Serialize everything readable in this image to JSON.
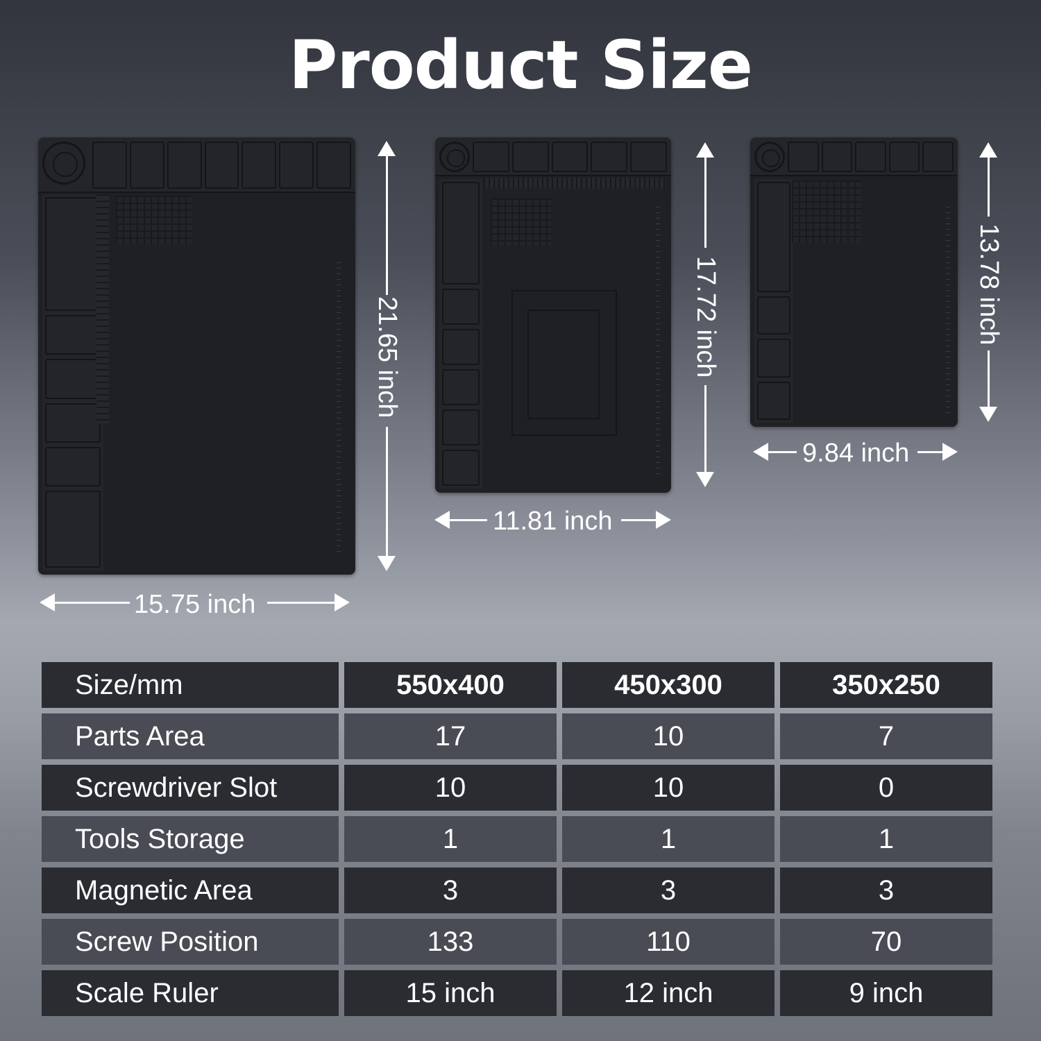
{
  "title": "Product Size",
  "mats": [
    {
      "size": "large",
      "width_label": "15.75 inch",
      "height_label": "21.65 inch"
    },
    {
      "size": "medium",
      "width_label": "11.81 inch",
      "height_label": "17.72 inch"
    },
    {
      "size": "small",
      "width_label": "9.84 inch",
      "height_label": "13.78 inch"
    }
  ],
  "table": {
    "header": {
      "label": "Size/mm",
      "values": [
        "550x400",
        "450x300",
        "350x250"
      ]
    },
    "rows": [
      {
        "label": "Parts Area",
        "values": [
          "17",
          "10",
          "7"
        ]
      },
      {
        "label": "Screwdriver Slot",
        "values": [
          "10",
          "10",
          "0"
        ]
      },
      {
        "label": "Tools Storage",
        "values": [
          "1",
          "1",
          "1"
        ]
      },
      {
        "label": "Magnetic Area",
        "values": [
          "3",
          "3",
          "3"
        ]
      },
      {
        "label": "Screw Position",
        "values": [
          "133",
          "110",
          "70"
        ]
      },
      {
        "label": "Scale Ruler",
        "values": [
          "15 inch",
          "12 inch",
          "9 inch"
        ]
      }
    ]
  },
  "colors": {
    "dark_row": "#2b2c31",
    "light_row": "#4a4c55",
    "mat": "#1f2023"
  }
}
